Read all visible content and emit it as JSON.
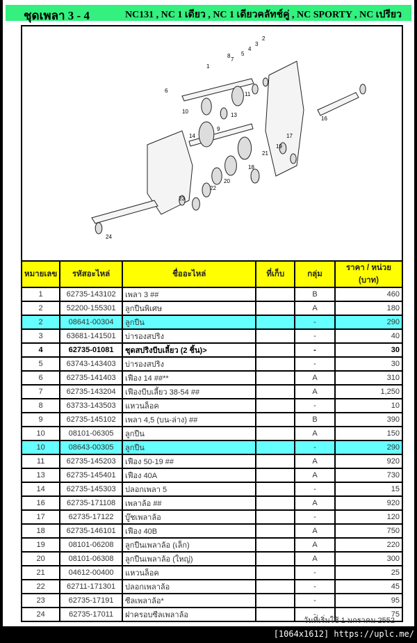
{
  "header": {
    "title": "ชุดเพลา 3 - 4",
    "models": "NC131 , NC 1 เดียว , NC 1 เดียวคลัทช์คู่ , NC SPORTY , NC เปรียว",
    "color": "#33f07f"
  },
  "diagram": {
    "callouts": [
      "1",
      "2",
      "3",
      "4",
      "5",
      "6",
      "7",
      "8",
      "9",
      "10",
      "11",
      "13",
      "14",
      "16",
      "17",
      "18",
      "19",
      "20",
      "21",
      "22",
      "23",
      "24"
    ]
  },
  "table": {
    "columns": [
      "หมายเลข",
      "รหัสอะไหล่",
      "ชื่ออะไหล่",
      "ที่เก็บ",
      "กลุ่ม",
      "ราคา / หน่วย (บาท)"
    ],
    "rows": [
      {
        "no": "1",
        "code": "62735-143102",
        "name": "เพลา 3 ##",
        "loc": "",
        "group": "B",
        "price": "460"
      },
      {
        "no": "2",
        "code": "52200-155301",
        "name": "ลูกปืนพิเศษ",
        "loc": "",
        "group": "A",
        "price": "180"
      },
      {
        "no": "2",
        "code": "08641-00304",
        "name": "ลูกปืน",
        "loc": "",
        "group": "-",
        "price": "290",
        "highlight": true
      },
      {
        "no": "3",
        "code": "63681-141501",
        "name": "บ่ารองสปริง",
        "loc": "",
        "group": "-",
        "price": "40"
      },
      {
        "no": "4",
        "code": "62735-01081",
        "name": "ชุดสปริงบีบเลี้ยว (2 ชิ้น)>",
        "loc": "",
        "group": "-",
        "price": "30",
        "bold": true
      },
      {
        "no": "5",
        "code": "63743-143403",
        "name": "บ่ารองสปริง",
        "loc": "",
        "group": "-",
        "price": "30"
      },
      {
        "no": "6",
        "code": "62735-141403",
        "name": "เฟือง 14 ##**",
        "loc": "",
        "group": "A",
        "price": "310"
      },
      {
        "no": "7",
        "code": "62735-143204",
        "name": "เฟืองบีบเลี้ยว 38-54 ##",
        "loc": "",
        "group": "A",
        "price": "1,250"
      },
      {
        "no": "8",
        "code": "63733-143503",
        "name": "แหวนล็อค",
        "loc": "",
        "group": "-",
        "price": "10"
      },
      {
        "no": "9",
        "code": "62735-145102",
        "name": "เพลา 4,5 (บน-ล่าง) ##",
        "loc": "",
        "group": "B",
        "price": "390"
      },
      {
        "no": "10",
        "code": "08101-06305",
        "name": "ลูกปืน",
        "loc": "",
        "group": "A",
        "price": "150"
      },
      {
        "no": "10",
        "code": "08643-00305",
        "name": "ลูกปืน",
        "loc": "",
        "group": "-",
        "price": "290",
        "highlight": true
      },
      {
        "no": "11",
        "code": "62735-145203",
        "name": "เฟือง 50-19 ##",
        "loc": "",
        "group": "A",
        "price": "920"
      },
      {
        "no": "13",
        "code": "62735-145401",
        "name": "เฟือง 40A",
        "loc": "",
        "group": "A",
        "price": "730"
      },
      {
        "no": "14",
        "code": "62735-145303",
        "name": "ปลอกเพลา 5",
        "loc": "",
        "group": "-",
        "price": "15"
      },
      {
        "no": "16",
        "code": "62735-171108",
        "name": "เพลาล้อ ##",
        "loc": "",
        "group": "A",
        "price": "920"
      },
      {
        "no": "17",
        "code": "62735-17122",
        "name": "บู๊ชเพลาล้อ",
        "loc": "",
        "group": "-",
        "price": "120"
      },
      {
        "no": "18",
        "code": "62735-146101",
        "name": "เฟือง 40B",
        "loc": "",
        "group": "A",
        "price": "750"
      },
      {
        "no": "19",
        "code": "08101-06208",
        "name": "ลูกปืนเพลาล้อ (เล็ก)",
        "loc": "",
        "group": "A",
        "price": "220"
      },
      {
        "no": "20",
        "code": "08101-06308",
        "name": "ลูกปืนเพลาล้อ (ใหญ่)",
        "loc": "",
        "group": "A",
        "price": "300"
      },
      {
        "no": "21",
        "code": "04612-00400",
        "name": "แหวนล็อค",
        "loc": "",
        "group": "-",
        "price": "25"
      },
      {
        "no": "22",
        "code": "62711-171301",
        "name": "ปลอกเพลาล้อ",
        "loc": "",
        "group": "-",
        "price": "45"
      },
      {
        "no": "23",
        "code": "62735-17191",
        "name": "ซีลเพลาล้อ*",
        "loc": "",
        "group": "-",
        "price": "95"
      },
      {
        "no": "24",
        "code": "62735-17011",
        "name": "ฝาครอบซีลเพลาล้อ",
        "loc": "",
        "group": "-",
        "price": "75"
      }
    ],
    "header_color": "#ffff00",
    "highlight_color": "#66ffff"
  },
  "footer": {
    "effective_date": "วันที่เริ่มใช้  1 มกราคม 2552"
  },
  "watermark": "[1064x1612] https://uplc.me/"
}
